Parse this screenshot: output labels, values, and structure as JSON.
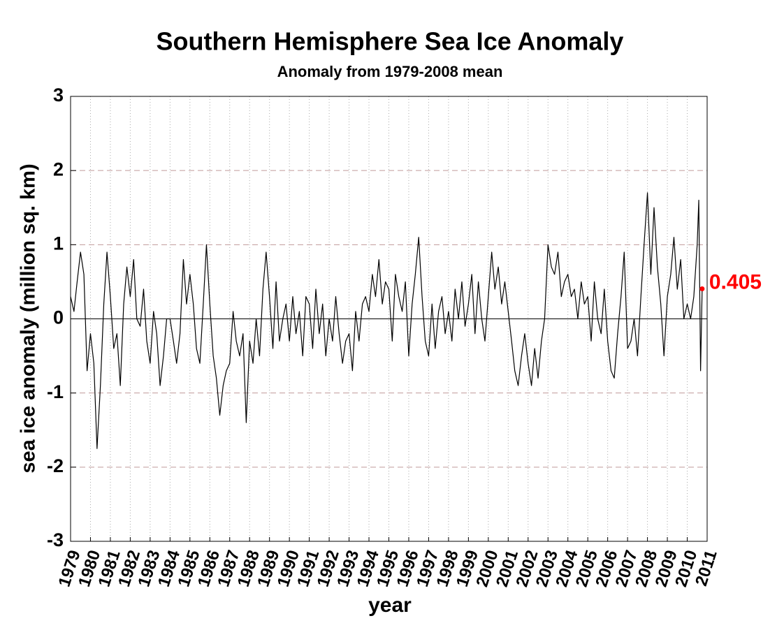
{
  "chart_data": {
    "type": "line",
    "title": "Southern Hemisphere Sea Ice Anomaly",
    "subtitle": "Anomaly from 1979-2008 mean",
    "x_label": "year",
    "y_label": "sea ice anomaly (million sq. km)",
    "xlim": [
      1979,
      2011
    ],
    "xticks": [
      1979,
      1980,
      1981,
      1982,
      1983,
      1984,
      1985,
      1986,
      1987,
      1988,
      1989,
      1990,
      1991,
      1992,
      1993,
      1994,
      1995,
      1996,
      1997,
      1998,
      1999,
      2000,
      2001,
      2002,
      2003,
      2004,
      2005,
      2006,
      2007,
      2008,
      2009,
      2010,
      2011
    ],
    "ylim": [
      -3,
      3
    ],
    "yticks": [
      -3,
      -2,
      -1,
      0,
      1,
      2,
      3
    ],
    "grid": true,
    "highlight_color": "#ff0000",
    "x": [
      1979.0,
      1979.17,
      1979.33,
      1979.5,
      1979.67,
      1979.83,
      1980.0,
      1980.17,
      1980.33,
      1980.5,
      1980.67,
      1980.83,
      1981.0,
      1981.17,
      1981.33,
      1981.5,
      1981.67,
      1981.83,
      1982.0,
      1982.17,
      1982.33,
      1982.5,
      1982.67,
      1982.83,
      1983.0,
      1983.17,
      1983.33,
      1983.5,
      1983.67,
      1983.83,
      1984.0,
      1984.17,
      1984.33,
      1984.5,
      1984.67,
      1984.83,
      1985.0,
      1985.17,
      1985.33,
      1985.5,
      1985.67,
      1985.83,
      1986.0,
      1986.17,
      1986.33,
      1986.5,
      1986.67,
      1986.83,
      1987.0,
      1987.17,
      1987.33,
      1987.5,
      1987.67,
      1987.83,
      1988.0,
      1988.17,
      1988.33,
      1988.5,
      1988.67,
      1988.83,
      1989.0,
      1989.17,
      1989.33,
      1989.5,
      1989.67,
      1989.83,
      1990.0,
      1990.17,
      1990.33,
      1990.5,
      1990.67,
      1990.83,
      1991.0,
      1991.17,
      1991.33,
      1991.5,
      1991.67,
      1991.83,
      1992.0,
      1992.17,
      1992.33,
      1992.5,
      1992.67,
      1992.83,
      1993.0,
      1993.17,
      1993.33,
      1993.5,
      1993.67,
      1993.83,
      1994.0,
      1994.17,
      1994.33,
      1994.5,
      1994.67,
      1994.83,
      1995.0,
      1995.17,
      1995.33,
      1995.5,
      1995.67,
      1995.83,
      1996.0,
      1996.17,
      1996.33,
      1996.5,
      1996.67,
      1996.83,
      1997.0,
      1997.17,
      1997.33,
      1997.5,
      1997.67,
      1997.83,
      1998.0,
      1998.17,
      1998.33,
      1998.5,
      1998.67,
      1998.83,
      1999.0,
      1999.17,
      1999.33,
      1999.5,
      1999.67,
      1999.83,
      2000.0,
      2000.17,
      2000.33,
      2000.5,
      2000.67,
      2000.83,
      2001.0,
      2001.17,
      2001.33,
      2001.5,
      2001.67,
      2001.83,
      2002.0,
      2002.17,
      2002.33,
      2002.5,
      2002.67,
      2002.83,
      2003.0,
      2003.17,
      2003.33,
      2003.5,
      2003.67,
      2003.83,
      2004.0,
      2004.17,
      2004.33,
      2004.5,
      2004.67,
      2004.83,
      2005.0,
      2005.17,
      2005.33,
      2005.5,
      2005.67,
      2005.83,
      2006.0,
      2006.17,
      2006.33,
      2006.5,
      2006.67,
      2006.83,
      2007.0,
      2007.17,
      2007.33,
      2007.5,
      2007.67,
      2007.83,
      2008.0,
      2008.17,
      2008.33,
      2008.5,
      2008.67,
      2008.83,
      2009.0,
      2009.17,
      2009.33,
      2009.5,
      2009.67,
      2009.83,
      2010.0,
      2010.17,
      2010.33,
      2010.5,
      2010.58,
      2010.67,
      2010.75
    ],
    "series": [
      {
        "color": "#000000",
        "values": [
          0.3,
          0.1,
          0.5,
          0.9,
          0.6,
          -0.7,
          -0.2,
          -0.6,
          -1.75,
          -0.9,
          0.2,
          0.9,
          0.3,
          -0.4,
          -0.2,
          -0.9,
          0.2,
          0.7,
          0.3,
          0.8,
          0.0,
          -0.1,
          0.4,
          -0.3,
          -0.6,
          0.1,
          -0.2,
          -0.9,
          -0.5,
          0.0,
          0.0,
          -0.3,
          -0.6,
          -0.2,
          0.8,
          0.2,
          0.6,
          0.2,
          -0.4,
          -0.6,
          0.2,
          1.0,
          0.2,
          -0.5,
          -0.8,
          -1.3,
          -0.9,
          -0.7,
          -0.6,
          0.1,
          -0.3,
          -0.5,
          -0.2,
          -1.4,
          -0.3,
          -0.6,
          0.0,
          -0.5,
          0.4,
          0.9,
          0.3,
          -0.4,
          0.5,
          -0.3,
          0.0,
          0.2,
          -0.3,
          0.3,
          -0.2,
          0.1,
          -0.5,
          0.3,
          0.2,
          -0.4,
          0.4,
          -0.2,
          0.2,
          -0.5,
          0.0,
          -0.3,
          0.3,
          -0.2,
          -0.6,
          -0.3,
          -0.2,
          -0.7,
          0.1,
          -0.3,
          0.2,
          0.3,
          0.1,
          0.6,
          0.3,
          0.8,
          0.2,
          0.5,
          0.4,
          -0.3,
          0.6,
          0.3,
          0.1,
          0.5,
          -0.5,
          0.2,
          0.6,
          1.1,
          0.3,
          -0.3,
          -0.5,
          0.2,
          -0.4,
          0.1,
          0.3,
          -0.2,
          0.1,
          -0.3,
          0.4,
          0.0,
          0.5,
          -0.1,
          0.2,
          0.6,
          -0.2,
          0.5,
          0.0,
          -0.3,
          0.3,
          0.9,
          0.4,
          0.7,
          0.2,
          0.5,
          0.1,
          -0.3,
          -0.7,
          -0.9,
          -0.5,
          -0.2,
          -0.6,
          -0.9,
          -0.4,
          -0.8,
          -0.3,
          0.0,
          1.0,
          0.7,
          0.6,
          0.9,
          0.3,
          0.5,
          0.6,
          0.3,
          0.4,
          0.0,
          0.5,
          0.2,
          0.3,
          -0.3,
          0.5,
          0.0,
          -0.2,
          0.4,
          -0.3,
          -0.7,
          -0.8,
          -0.2,
          0.3,
          0.9,
          -0.4,
          -0.3,
          0.0,
          -0.5,
          0.3,
          1.0,
          1.7,
          0.6,
          1.5,
          0.7,
          0.2,
          -0.5,
          0.3,
          0.6,
          1.1,
          0.4,
          0.8,
          0.0,
          0.2,
          0.0,
          0.3,
          1.0,
          1.6,
          -0.7,
          0.405
        ]
      }
    ]
  }
}
